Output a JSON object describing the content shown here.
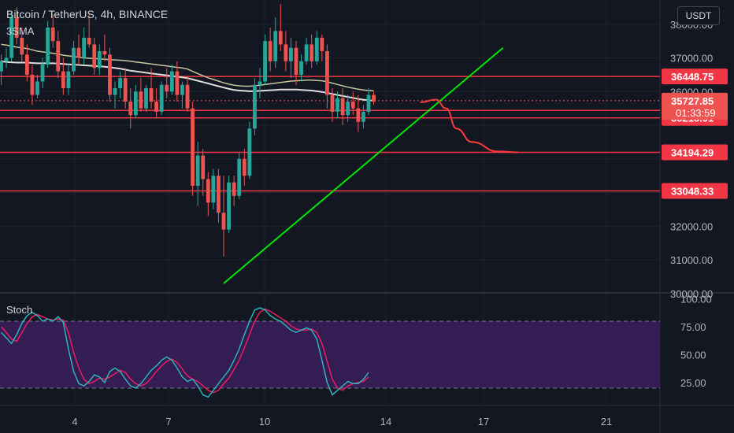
{
  "header": {
    "symbol": "Bitcoin / TetherUS, 4h, BINANCE",
    "indicator": "3SMA",
    "currency_button": "USDT"
  },
  "stoch_label": "Stoch",
  "colors": {
    "background": "#131722",
    "grid": "#1e222d",
    "up": "#26a69a",
    "down": "#ef5350",
    "level_line": "#f23645",
    "trend_line": "#00e600",
    "forecast": "#ff3b3b",
    "sma_fast": "#c8c6a0",
    "sma_slow": "#e0dcdc",
    "stoch_k": "#2db3b9",
    "stoch_d": "#e91e63",
    "stoch_band": "#3a1f5c"
  },
  "chart_data": [
    {
      "type": "candlestick",
      "title": "Bitcoin / TetherUS, 4h, BINANCE",
      "x_ticks": [
        "4",
        "7",
        "10",
        "14",
        "17",
        "21"
      ],
      "y_ticks": [
        "38000.00",
        "37000.00",
        "36000.00",
        "32000.00",
        "31000.00",
        "30000.00"
      ],
      "ylim": [
        29900,
        38500
      ],
      "candles": [
        [
          36600,
          37100,
          36200,
          36900
        ],
        [
          36900,
          37300,
          36700,
          37000
        ],
        [
          37000,
          38400,
          36900,
          38200
        ],
        [
          38200,
          38500,
          37400,
          37600
        ],
        [
          37600,
          37900,
          36900,
          37100
        ],
        [
          37100,
          37400,
          36300,
          36500
        ],
        [
          36500,
          36800,
          35600,
          35900
        ],
        [
          35900,
          36500,
          35800,
          36300
        ],
        [
          36300,
          37000,
          36100,
          36800
        ],
        [
          36800,
          38100,
          36700,
          37900
        ],
        [
          37900,
          38300,
          37300,
          37500
        ],
        [
          37500,
          37800,
          36400,
          36600
        ],
        [
          36600,
          37000,
          35900,
          36100
        ],
        [
          36100,
          36800,
          35900,
          36600
        ],
        [
          36600,
          37500,
          36500,
          37300
        ],
        [
          37300,
          37700,
          36800,
          37000
        ],
        [
          37000,
          37900,
          36800,
          37600
        ],
        [
          37600,
          38300,
          37300,
          37400
        ],
        [
          37400,
          37600,
          36500,
          36700
        ],
        [
          36700,
          37400,
          36500,
          37200
        ],
        [
          37200,
          37700,
          36900,
          37100
        ],
        [
          37100,
          37300,
          35700,
          35900
        ],
        [
          35900,
          36300,
          35500,
          36100
        ],
        [
          36100,
          36600,
          35800,
          36400
        ],
        [
          36400,
          36700,
          35500,
          35700
        ],
        [
          35700,
          36100,
          34900,
          35300
        ],
        [
          35300,
          36200,
          35200,
          36000
        ],
        [
          36000,
          36400,
          35400,
          35500
        ],
        [
          35500,
          36200,
          35400,
          36100
        ],
        [
          36100,
          36700,
          35500,
          35700
        ],
        [
          35700,
          36100,
          35200,
          35400
        ],
        [
          35400,
          36300,
          35300,
          36200
        ],
        [
          36200,
          36700,
          35800,
          36000
        ],
        [
          36000,
          36800,
          35900,
          36600
        ],
        [
          36600,
          36900,
          35700,
          35900
        ],
        [
          35900,
          36300,
          35500,
          36200
        ],
        [
          36200,
          36400,
          35400,
          35500
        ],
        [
          35500,
          35700,
          32900,
          33200
        ],
        [
          33200,
          34500,
          32600,
          34100
        ],
        [
          34100,
          34300,
          32900,
          33400
        ],
        [
          33400,
          33600,
          32300,
          32700
        ],
        [
          32700,
          33700,
          32500,
          33500
        ],
        [
          33500,
          33700,
          32100,
          32400
        ],
        [
          32400,
          33500,
          31100,
          31900
        ],
        [
          31900,
          33500,
          31800,
          33300
        ],
        [
          33300,
          33500,
          32600,
          32900
        ],
        [
          32900,
          34200,
          32800,
          34000
        ],
        [
          34000,
          34300,
          33200,
          33500
        ],
        [
          33500,
          35100,
          33400,
          34900
        ],
        [
          34900,
          36400,
          34700,
          36200
        ],
        [
          36200,
          36700,
          35800,
          36300
        ],
        [
          36300,
          37700,
          36200,
          37500
        ],
        [
          37500,
          37900,
          36600,
          36900
        ],
        [
          36900,
          38200,
          36700,
          37800
        ],
        [
          37800,
          38600,
          37200,
          37400
        ],
        [
          37400,
          37800,
          36600,
          36900
        ],
        [
          36900,
          37600,
          36400,
          37300
        ],
        [
          37300,
          37500,
          36200,
          36500
        ],
        [
          36500,
          37100,
          36300,
          36900
        ],
        [
          36900,
          37600,
          36800,
          37400
        ],
        [
          37400,
          37700,
          36700,
          36900
        ],
        [
          36900,
          37800,
          36800,
          37600
        ],
        [
          37600,
          37700,
          36900,
          37200
        ],
        [
          37200,
          37400,
          35500,
          35900
        ],
        [
          35900,
          36100,
          35100,
          35400
        ],
        [
          35400,
          36000,
          35200,
          35800
        ],
        [
          35800,
          36100,
          35000,
          35300
        ],
        [
          35300,
          35900,
          35100,
          35700
        ],
        [
          35700,
          36000,
          35300,
          35500
        ],
        [
          35500,
          35900,
          34800,
          35100
        ],
        [
          35100,
          35600,
          34900,
          35400
        ],
        [
          35400,
          36100,
          35300,
          35900
        ],
        [
          35900,
          36000,
          35600,
          35700
        ]
      ],
      "sma_fast": [
        37400,
        37380,
        37350,
        37320,
        37300,
        37280,
        37240,
        37200,
        37180,
        37160,
        37140,
        37110,
        37080,
        37060,
        37040,
        37020,
        37000,
        36990,
        36980,
        36970,
        36960,
        36950,
        36940,
        36930,
        36920,
        36900,
        36880,
        36860,
        36840,
        36820,
        36800,
        36780,
        36760,
        36740,
        36720,
        36700,
        36670,
        36600,
        36530,
        36470,
        36410,
        36360,
        36310,
        36260,
        36220,
        36190,
        36170,
        36160,
        36160,
        36170,
        36190,
        36210,
        36230,
        36250,
        36270,
        36290,
        36310,
        36320,
        36330,
        36340,
        36340,
        36330,
        36320,
        36290,
        36250,
        36210,
        36170,
        36130,
        36100,
        36070,
        36050,
        36030,
        36020
      ],
      "sma_slow": [
        36900,
        36880,
        36870,
        36860,
        36860,
        36860,
        36850,
        36840,
        36840,
        36840,
        36840,
        36830,
        36820,
        36810,
        36800,
        36790,
        36780,
        36770,
        36760,
        36750,
        36740,
        36720,
        36700,
        36680,
        36650,
        36620,
        36600,
        36580,
        36560,
        36540,
        36520,
        36500,
        36480,
        36460,
        36440,
        36420,
        36400,
        36360,
        36320,
        36280,
        36240,
        36200,
        36160,
        36120,
        36080,
        36050,
        36030,
        36020,
        36010,
        36010,
        36020,
        36030,
        36040,
        36050,
        36060,
        36060,
        36060,
        36060,
        36050,
        36040,
        36030,
        36010,
        35990,
        35960,
        35930,
        35900,
        35870,
        35840,
        35810,
        35780,
        35760,
        35740,
        35730
      ],
      "levels": [
        "36448.75",
        "35439.51",
        "35218.91",
        "34194.29",
        "33048.33"
      ],
      "level_values": [
        36448.75,
        35439.51,
        35218.91,
        34194.29,
        33048.33
      ],
      "last_price": "35727.85",
      "last_price_value": 35727.85,
      "countdown": "01:33:59",
      "trend_line": {
        "from": [
          43,
          30300
        ],
        "to": [
          97,
          37300
        ]
      },
      "forecast": [
        [
          81,
          35680
        ],
        [
          84,
          35760
        ],
        [
          86,
          35500
        ],
        [
          88,
          34900
        ],
        [
          91,
          34500
        ],
        [
          96,
          34220
        ],
        [
          100,
          34194
        ]
      ]
    },
    {
      "type": "line",
      "title": "Stoch",
      "ylim": [
        0,
        100
      ],
      "y_ticks": [
        "100.00",
        "75.00",
        "50.00",
        "25.00"
      ],
      "band": [
        20,
        80
      ],
      "series": [
        {
          "values": [
            70,
            65,
            60,
            68,
            78,
            85,
            88,
            85,
            80,
            82,
            80,
            84,
            79,
            55,
            35,
            24,
            22,
            26,
            32,
            30,
            25,
            35,
            38,
            35,
            28,
            22,
            20,
            24,
            30,
            36,
            40,
            45,
            48,
            45,
            38,
            30,
            26,
            28,
            22,
            14,
            12,
            18,
            24,
            30,
            36,
            45,
            55,
            68,
            80,
            90,
            92,
            90,
            85,
            82,
            80,
            76,
            72,
            70,
            72,
            74,
            72,
            64,
            45,
            25,
            14,
            18,
            22,
            26,
            24,
            24,
            28,
            34
          ]
        },
        {
          "values": [
            75,
            70,
            64,
            62,
            70,
            78,
            84,
            86,
            84,
            82,
            81,
            82,
            81,
            70,
            52,
            38,
            28,
            24,
            26,
            29,
            28,
            30,
            33,
            36,
            34,
            28,
            24,
            22,
            24,
            29,
            35,
            40,
            44,
            46,
            43,
            37,
            31,
            28,
            26,
            22,
            18,
            16,
            18,
            24,
            29,
            37,
            45,
            56,
            68,
            80,
            88,
            91,
            89,
            86,
            83,
            80,
            76,
            73,
            72,
            72,
            73,
            70,
            60,
            44,
            28,
            20,
            18,
            22,
            24,
            25,
            26,
            30
          ]
        }
      ]
    }
  ]
}
